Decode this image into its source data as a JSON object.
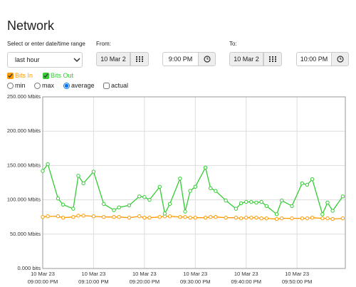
{
  "header": {
    "title": "Network"
  },
  "controls": {
    "range_label": "Select or enter date/time range",
    "range_select": "last hour",
    "from": {
      "label": "From:",
      "date": "10 Mar 2",
      "time": "9:00 PM"
    },
    "to": {
      "label": "To:",
      "date": "10 Mar 2",
      "time": "10:00 PM"
    },
    "aggregation": [
      {
        "label": "min",
        "selected": false
      },
      {
        "label": "max",
        "selected": false
      },
      {
        "label": "average",
        "selected": true
      }
    ],
    "actual": {
      "label": "actual",
      "checked": false
    }
  },
  "chart_data": {
    "type": "line",
    "x": [
      "2023-03-10T21:00:00",
      "2023-03-10T21:01:00",
      "2023-03-10T21:03:00",
      "2023-03-10T21:04:00",
      "2023-03-10T21:06:00",
      "2023-03-10T21:07:00",
      "2023-03-10T21:08:00",
      "2023-03-10T21:10:00",
      "2023-03-10T21:12:00",
      "2023-03-10T21:14:00",
      "2023-03-10T21:15:00",
      "2023-03-10T21:17:00",
      "2023-03-10T21:19:00",
      "2023-03-10T21:20:00",
      "2023-03-10T21:21:00",
      "2023-03-10T21:23:00",
      "2023-03-10T21:24:00",
      "2023-03-10T21:25:00",
      "2023-03-10T21:27:00",
      "2023-03-10T21:28:00",
      "2023-03-10T21:29:00",
      "2023-03-10T21:30:00",
      "2023-03-10T21:32:00",
      "2023-03-10T21:33:00",
      "2023-03-10T21:34:00",
      "2023-03-10T21:36:00",
      "2023-03-10T21:38:00",
      "2023-03-10T21:39:00",
      "2023-03-10T21:40:00",
      "2023-03-10T21:41:00",
      "2023-03-10T21:42:00",
      "2023-03-10T21:43:00",
      "2023-03-10T21:44:00",
      "2023-03-10T21:46:00",
      "2023-03-10T21:47:00",
      "2023-03-10T21:49:00",
      "2023-03-10T21:51:00",
      "2023-03-10T21:52:00",
      "2023-03-10T21:53:00",
      "2023-03-10T21:55:00",
      "2023-03-10T21:56:00",
      "2023-03-10T21:57:00",
      "2023-03-10T21:59:00"
    ],
    "series": [
      {
        "name": "Bits In",
        "color": "#ff9900",
        "visible": true,
        "values": [
          75,
          76,
          76,
          74,
          75,
          77,
          77,
          76,
          75,
          75,
          75,
          74,
          76,
          74,
          74,
          75,
          76,
          76,
          75,
          75,
          74,
          74,
          74,
          75,
          75,
          74,
          74,
          73,
          74,
          74,
          74,
          73,
          73,
          72,
          73,
          73,
          73,
          73,
          74,
          73,
          73,
          72,
          73
        ]
      },
      {
        "name": "Bits Out",
        "color": "#33cc33",
        "visible": true,
        "values": [
          142,
          152,
          102,
          93,
          87,
          135,
          124,
          141,
          94,
          85,
          89,
          92,
          105,
          104,
          100,
          119,
          80,
          94,
          131,
          83,
          113,
          119,
          147,
          117,
          113,
          99,
          87,
          95,
          97,
          97,
          96,
          97,
          91,
          79,
          99,
          91,
          124,
          122,
          130,
          79,
          96,
          84,
          105
        ]
      }
    ],
    "ylim": [
      0,
      250
    ],
    "yticks": [
      {
        "value": 0,
        "label": "0.000 bits"
      },
      {
        "value": 50,
        "label": "50.000 Mbits"
      },
      {
        "value": 100,
        "label": "100.000 Mbits"
      },
      {
        "value": 150,
        "label": "150.000 Mbits"
      },
      {
        "value": 200,
        "label": "200.000 Mbits"
      },
      {
        "value": 250,
        "label": "250.000 Mbits"
      }
    ],
    "xlim": [
      "2023-03-10T21:00:00",
      "2023-03-10T21:59:30"
    ],
    "xticks": [
      {
        "value": "2023-03-10T21:00:00",
        "label": [
          "10 Mar 23",
          "09:00:00 PM"
        ]
      },
      {
        "value": "2023-03-10T21:10:00",
        "label": [
          "10 Mar 23",
          "09:10:00 PM"
        ]
      },
      {
        "value": "2023-03-10T21:20:00",
        "label": [
          "10 Mar 23",
          "09:20:00 PM"
        ]
      },
      {
        "value": "2023-03-10T21:30:00",
        "label": [
          "10 Mar 23",
          "09:30:00 PM"
        ]
      },
      {
        "value": "2023-03-10T21:40:00",
        "label": [
          "10 Mar 23",
          "09:40:00 PM"
        ]
      },
      {
        "value": "2023-03-10T21:50:00",
        "label": [
          "10 Mar 23",
          "09:50:00 PM"
        ]
      }
    ],
    "grid": true
  }
}
